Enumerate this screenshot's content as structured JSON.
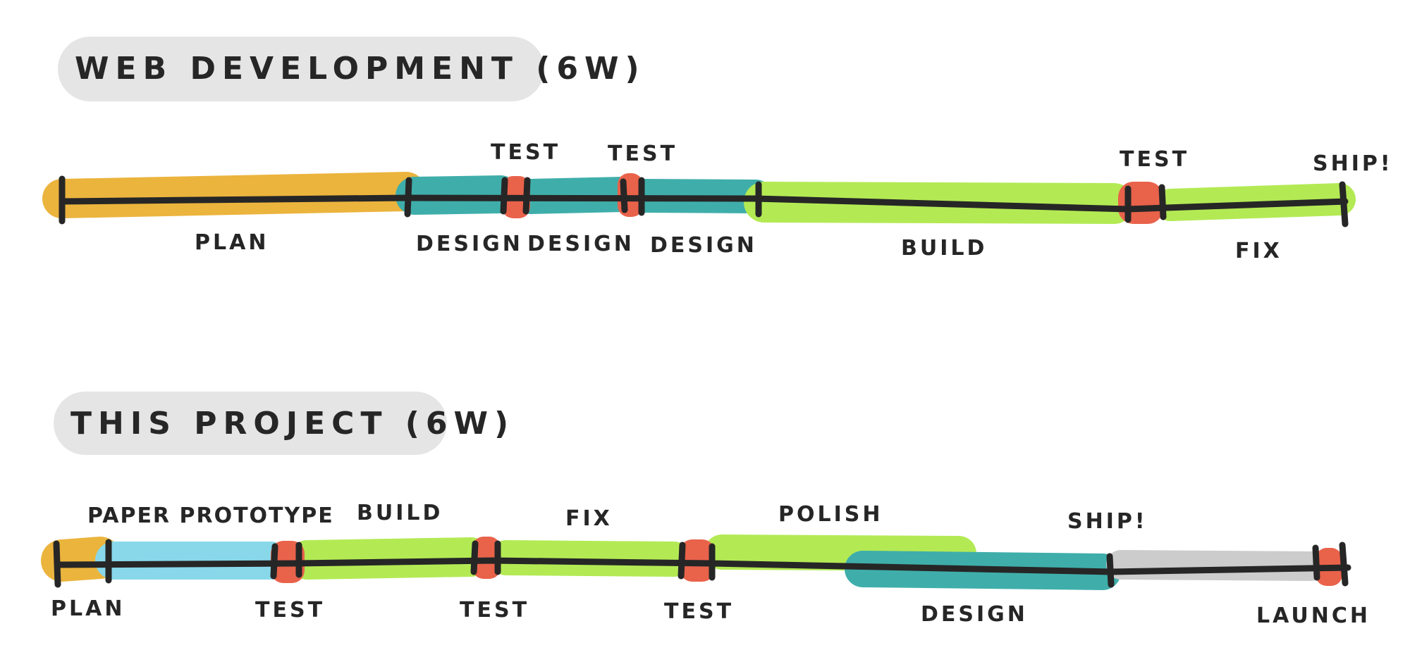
{
  "colors": {
    "plan": "#EBB43D",
    "design": "#3FAEAA",
    "test": "#E9624A",
    "build": "#B3EA54",
    "paper": "#88D8EA",
    "launch": "#CCCCCC",
    "title_bg": "#E5E5E5",
    "ink": "#262626"
  },
  "timelines": [
    {
      "title": "WEB DEVELOPMENT (6W)",
      "phases": [
        {
          "name": "plan",
          "color": "plan",
          "from": 0,
          "to": 0.27,
          "label": "PLAN"
        },
        {
          "name": "design-1",
          "color": "design",
          "from": 0.27,
          "to": 0.345,
          "label": "DESIGN"
        },
        {
          "name": "test-1",
          "color": "test",
          "from": 0.345,
          "to": 0.365,
          "label": "TEST"
        },
        {
          "name": "design-2",
          "color": "design",
          "from": 0.365,
          "to": 0.437,
          "label": "DESIGN"
        },
        {
          "name": "test-2",
          "color": "test",
          "from": 0.437,
          "to": 0.455,
          "label": "TEST"
        },
        {
          "name": "design-3",
          "color": "design",
          "from": 0.455,
          "to": 0.54,
          "label": "DESIGN"
        },
        {
          "name": "build",
          "color": "build",
          "from": 0.54,
          "to": 0.832,
          "label": "BUILD"
        },
        {
          "name": "test-3",
          "color": "test",
          "from": 0.832,
          "to": 0.858,
          "label": "TEST"
        },
        {
          "name": "fix",
          "color": "build",
          "from": 0.858,
          "to": 1.0,
          "label": "FIX"
        }
      ],
      "milestone": "SHIP!"
    },
    {
      "title": "THIS PROJECT (6W)",
      "phases": [
        {
          "name": "plan",
          "color": "plan",
          "from": 0,
          "to": 0.04,
          "label": "PLAN"
        },
        {
          "name": "paper-prototype",
          "color": "paper",
          "from": 0.04,
          "to": 0.17,
          "label": "PAPER PROTOTYPE"
        },
        {
          "name": "test-1",
          "color": "test",
          "from": 0.17,
          "to": 0.19,
          "label": "TEST"
        },
        {
          "name": "build",
          "color": "build",
          "from": 0.19,
          "to": 0.33,
          "label": "BUILD"
        },
        {
          "name": "test-2",
          "color": "test",
          "from": 0.33,
          "to": 0.345,
          "label": "TEST"
        },
        {
          "name": "fix",
          "color": "build",
          "from": 0.345,
          "to": 0.485,
          "label": "FIX"
        },
        {
          "name": "test-3",
          "color": "test",
          "from": 0.485,
          "to": 0.51,
          "label": "TEST"
        },
        {
          "name": "polish",
          "color": "build",
          "from": 0.51,
          "to": 0.71,
          "label": "POLISH"
        },
        {
          "name": "design",
          "color": "design",
          "from": 0.62,
          "to": 0.81,
          "label": "DESIGN"
        },
        {
          "name": "launch",
          "color": "launch",
          "from": 0.81,
          "to": 0.985,
          "label": "LAUNCH"
        },
        {
          "name": "test-4",
          "color": "test",
          "from": 0.985,
          "to": 1.0,
          "label": ""
        }
      ],
      "milestone": "SHIP!"
    }
  ]
}
